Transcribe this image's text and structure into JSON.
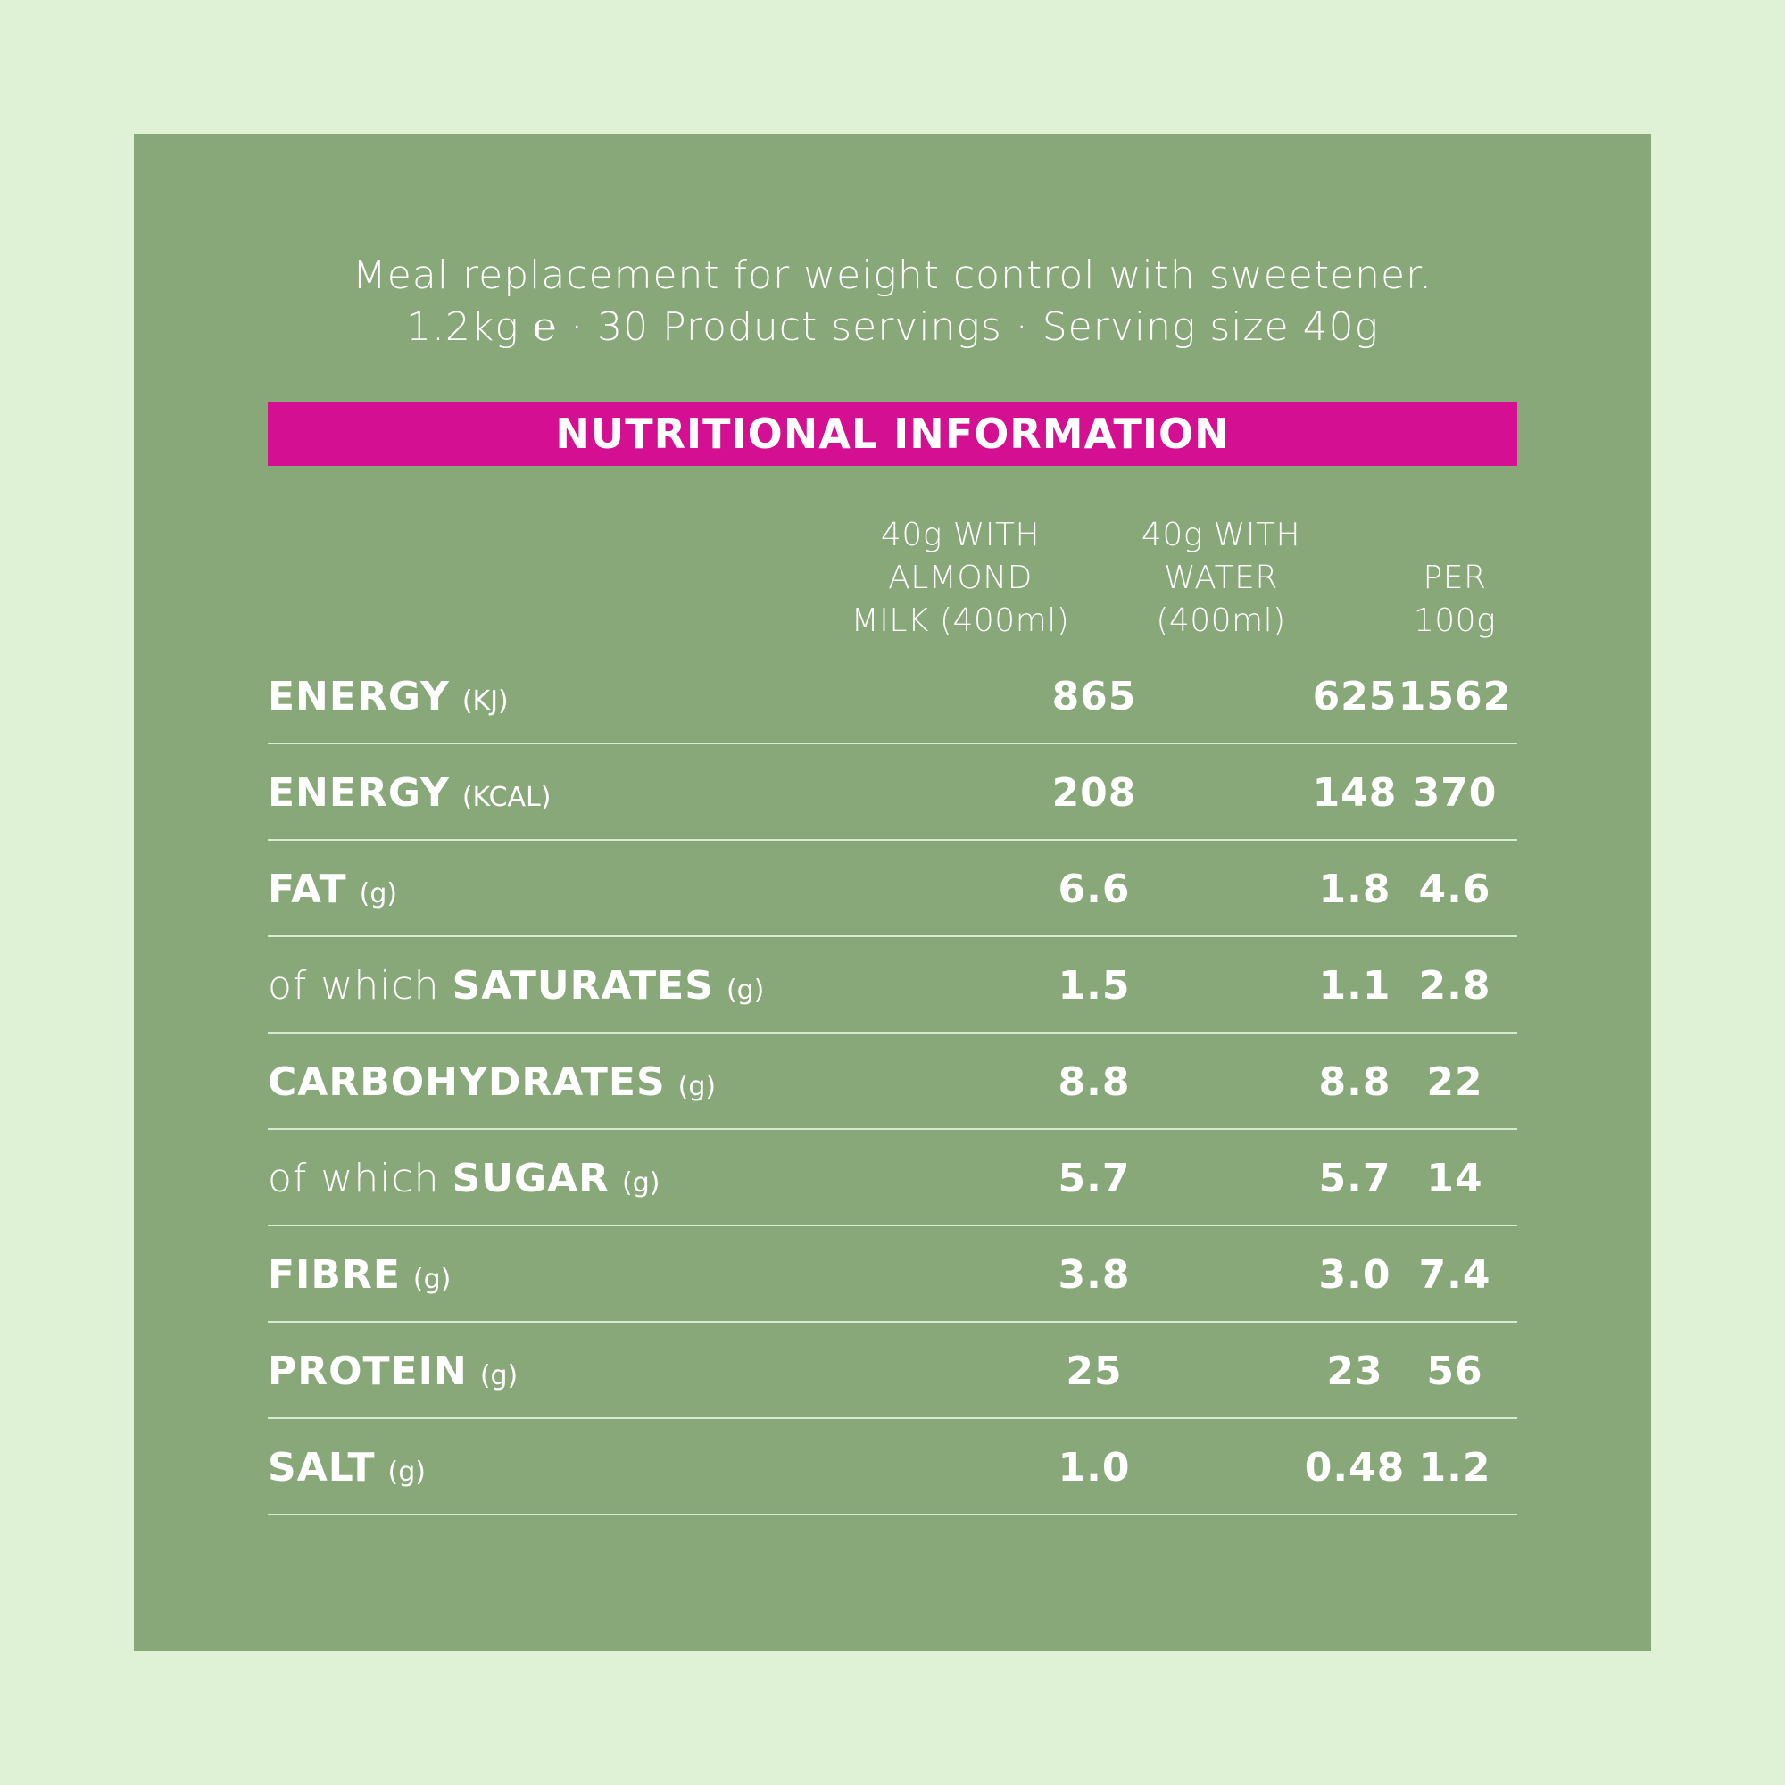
{
  "intro": {
    "line1": "Meal replacement for weight control with sweetener.",
    "line2_pre": "1.2kg ",
    "estimated_sign": "℮",
    "line2_post": " · 30 Product servings · Serving size 40g"
  },
  "banner": "NUTRITIONAL INFORMATION",
  "columns": [
    [
      "40g WITH",
      "ALMOND",
      "MILK (400ml)"
    ],
    [
      "40g WITH",
      "WATER",
      "(400ml)"
    ],
    [
      "PER",
      "100g"
    ]
  ],
  "rows": [
    {
      "prefix": "",
      "name": "ENERGY",
      "unit": "(KJ)",
      "values": [
        "865",
        "625",
        "1562"
      ]
    },
    {
      "prefix": "",
      "name": "ENERGY",
      "unit": "(KCAL)",
      "values": [
        "208",
        "148",
        "370"
      ]
    },
    {
      "prefix": "",
      "name": "FAT",
      "unit": "(g)",
      "values": [
        "6.6",
        "1.8",
        "4.6"
      ]
    },
    {
      "prefix": "of which",
      "name": "SATURATES",
      "unit": "(g)",
      "values": [
        "1.5",
        "1.1",
        "2.8"
      ]
    },
    {
      "prefix": "",
      "name": "CARBOHYDRATES",
      "unit": "(g)",
      "values": [
        "8.8",
        "8.8",
        "22"
      ]
    },
    {
      "prefix": "of which",
      "name": "SUGAR",
      "unit": "(g)",
      "values": [
        "5.7",
        "5.7",
        "14"
      ]
    },
    {
      "prefix": "",
      "name": "FIBRE",
      "unit": "(g)",
      "values": [
        "3.8",
        "3.0",
        "7.4"
      ]
    },
    {
      "prefix": "",
      "name": "PROTEIN",
      "unit": "(g)",
      "values": [
        "25",
        "23",
        "56"
      ]
    },
    {
      "prefix": "",
      "name": "SALT",
      "unit": "(g)",
      "values": [
        "1.0",
        "0.48",
        "1.2"
      ]
    }
  ],
  "colors": {
    "page_background": "#dff2d6",
    "panel": "#88a879",
    "banner": "#d40f91",
    "text": "#ffffff",
    "divider": "#d6eccf"
  }
}
